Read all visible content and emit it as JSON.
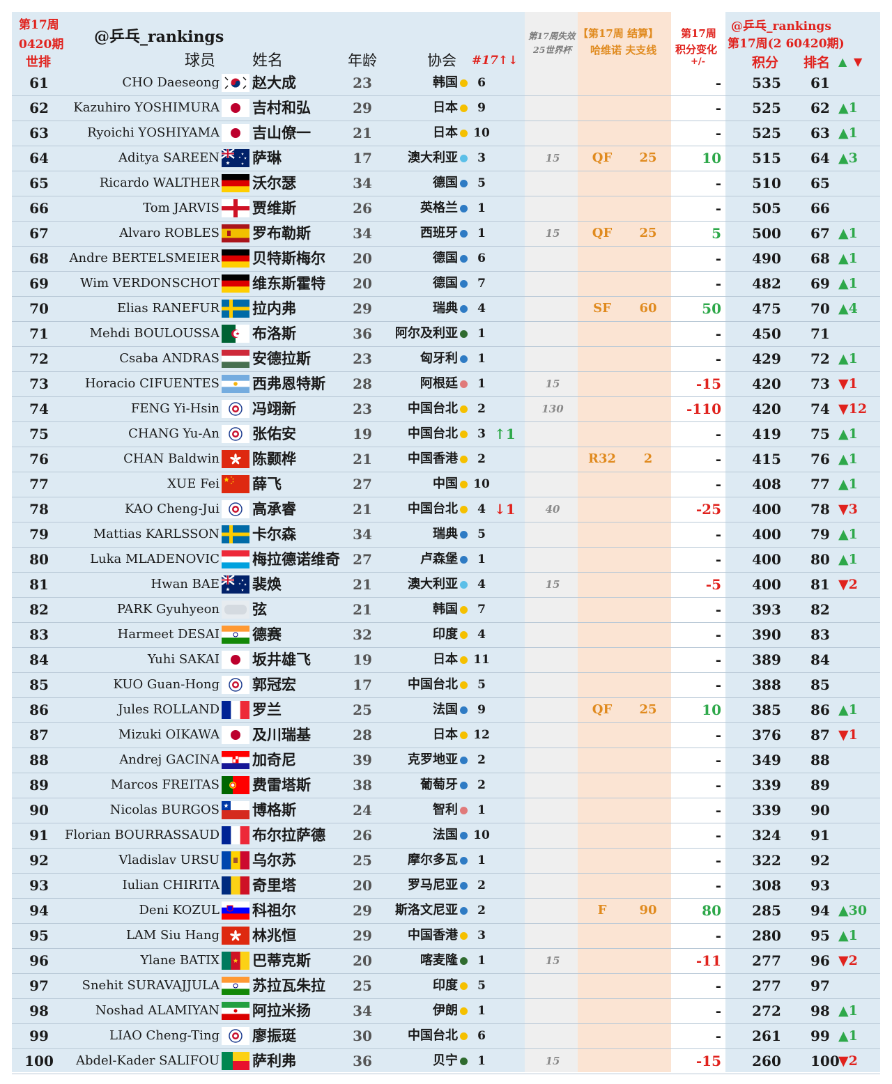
{
  "header": {
    "week_title": "第17周",
    "period": "0420期",
    "world_rank": "世排",
    "handle": "@乒乓_rankings",
    "col_player": "球员",
    "col_name": "姓名",
    "col_age": "年龄",
    "col_assoc": "协会",
    "col_count": "#17↑↓",
    "expire_line1": "第17周失效",
    "expire_line2": "25世界杯",
    "settle_line1": "【第17周 结算】",
    "settle_line2": "哈维诺 夫支线",
    "change_line1": "第17周",
    "change_line2": "积分变化",
    "change_line3": "+/-",
    "right_handle": "@乒乓_rankings",
    "right_period": "第17周(2 60420期)",
    "col_points": "积分",
    "col_rank": "排名",
    "up_arrow": "▲",
    "down_arrow": "▼"
  },
  "colors": {
    "background": "#ddeaf3",
    "expire_column": "#efefef",
    "settle_column": "#fbe4d3",
    "change_column": "#ffffff",
    "red": "#e0221d",
    "green": "#2ea84a",
    "orange": "#e08a1e",
    "dot_yellow": "#f5c000",
    "dot_blue": "#2e7bc4",
    "dot_lightblue": "#5bbfe8",
    "dot_green": "#2f6b2f",
    "dot_pink": "#e07a7a"
  },
  "rows": [
    {
      "wr": "61",
      "en": "CHO Daeseong",
      "flag": "kor",
      "zh": "赵大成",
      "age": "23",
      "assoc": "韩国",
      "dot": "yellow",
      "cnt": "6",
      "mv": "",
      "exp": "",
      "res": "",
      "rpt": "",
      "chg": "-",
      "pts": "535",
      "rk": "61",
      "rm": ""
    },
    {
      "wr": "62",
      "en": "Kazuhiro YOSHIMURA",
      "flag": "jpn",
      "zh": "吉村和弘",
      "age": "29",
      "assoc": "日本",
      "dot": "yellow",
      "cnt": "9",
      "mv": "",
      "exp": "",
      "res": "",
      "rpt": "",
      "chg": "-",
      "pts": "525",
      "rk": "62",
      "rm": "▲1"
    },
    {
      "wr": "63",
      "en": "Ryoichi YOSHIYAMA",
      "flag": "jpn",
      "zh": "吉山僚一",
      "age": "21",
      "assoc": "日本",
      "dot": "yellow",
      "cnt": "10",
      "mv": "",
      "exp": "",
      "res": "",
      "rpt": "",
      "chg": "-",
      "pts": "525",
      "rk": "63",
      "rm": "▲1"
    },
    {
      "wr": "64",
      "en": "Aditya SAREEN",
      "flag": "aus",
      "zh": "萨琳",
      "age": "17",
      "assoc": "澳大利亚",
      "dot": "lightblue",
      "cnt": "3",
      "mv": "",
      "exp": "15",
      "res": "QF",
      "rpt": "25",
      "chg": "10",
      "pts": "515",
      "rk": "64",
      "rm": "▲3"
    },
    {
      "wr": "65",
      "en": "Ricardo WALTHER",
      "flag": "ger",
      "zh": "沃尔瑟",
      "age": "34",
      "assoc": "德国",
      "dot": "blue",
      "cnt": "5",
      "mv": "",
      "exp": "",
      "res": "",
      "rpt": "",
      "chg": "-",
      "pts": "510",
      "rk": "65",
      "rm": ""
    },
    {
      "wr": "66",
      "en": "Tom JARVIS",
      "flag": "eng",
      "zh": "贾维斯",
      "age": "26",
      "assoc": "英格兰",
      "dot": "blue",
      "cnt": "1",
      "mv": "",
      "exp": "",
      "res": "",
      "rpt": "",
      "chg": "-",
      "pts": "505",
      "rk": "66",
      "rm": ""
    },
    {
      "wr": "67",
      "en": "Alvaro ROBLES",
      "flag": "esp",
      "zh": "罗布勒斯",
      "age": "34",
      "assoc": "西班牙",
      "dot": "blue",
      "cnt": "1",
      "mv": "",
      "exp": "15",
      "res": "QF",
      "rpt": "25",
      "chg": "5",
      "pts": "500",
      "rk": "67",
      "rm": "▲1"
    },
    {
      "wr": "68",
      "en": "Andre BERTELSMEIER",
      "flag": "ger",
      "zh": "贝特斯梅尔",
      "age": "20",
      "assoc": "德国",
      "dot": "blue",
      "cnt": "6",
      "mv": "",
      "exp": "",
      "res": "",
      "rpt": "",
      "chg": "-",
      "pts": "490",
      "rk": "68",
      "rm": "▲1"
    },
    {
      "wr": "69",
      "en": "Wim VERDONSCHOT",
      "flag": "ger",
      "zh": "维东斯霍特",
      "age": "20",
      "assoc": "德国",
      "dot": "blue",
      "cnt": "7",
      "mv": "",
      "exp": "",
      "res": "",
      "rpt": "",
      "chg": "-",
      "pts": "482",
      "rk": "69",
      "rm": "▲1"
    },
    {
      "wr": "70",
      "en": "Elias RANEFUR",
      "flag": "swe",
      "zh": "拉内弗",
      "age": "29",
      "assoc": "瑞典",
      "dot": "blue",
      "cnt": "4",
      "mv": "",
      "exp": "",
      "res": "SF",
      "rpt": "60",
      "chg": "50",
      "pts": "475",
      "rk": "70",
      "rm": "▲4"
    },
    {
      "wr": "71",
      "en": "Mehdi BOULOUSSA",
      "flag": "alg",
      "zh": "布洛斯",
      "age": "36",
      "assoc": "阿尔及利亚",
      "dot": "green",
      "cnt": "1",
      "mv": "",
      "exp": "",
      "res": "",
      "rpt": "",
      "chg": "-",
      "pts": "450",
      "rk": "71",
      "rm": ""
    },
    {
      "wr": "72",
      "en": "Csaba ANDRAS",
      "flag": "hun",
      "zh": "安德拉斯",
      "age": "23",
      "assoc": "匈牙利",
      "dot": "blue",
      "cnt": "1",
      "mv": "",
      "exp": "",
      "res": "",
      "rpt": "",
      "chg": "-",
      "pts": "429",
      "rk": "72",
      "rm": "▲1"
    },
    {
      "wr": "73",
      "en": "Horacio CIFUENTES",
      "flag": "arg",
      "zh": "西弗恩特斯",
      "age": "28",
      "assoc": "阿根廷",
      "dot": "pink",
      "cnt": "1",
      "mv": "",
      "exp": "15",
      "res": "",
      "rpt": "",
      "chg": "-15",
      "pts": "420",
      "rk": "73",
      "rm": "▼1"
    },
    {
      "wr": "74",
      "en": "FENG Yi-Hsin",
      "flag": "tpe",
      "zh": "冯翊新",
      "age": "23",
      "assoc": "中国台北",
      "dot": "yellow",
      "cnt": "2",
      "mv": "",
      "exp": "130",
      "res": "",
      "rpt": "",
      "chg": "-110",
      "pts": "420",
      "rk": "74",
      "rm": "▼12"
    },
    {
      "wr": "75",
      "en": "CHANG Yu-An",
      "flag": "tpe",
      "zh": "张佑安",
      "age": "19",
      "assoc": "中国台北",
      "dot": "yellow",
      "cnt": "3",
      "mv": "↑1",
      "exp": "",
      "res": "",
      "rpt": "",
      "chg": "-",
      "pts": "419",
      "rk": "75",
      "rm": "▲1"
    },
    {
      "wr": "76",
      "en": "CHAN Baldwin",
      "flag": "hkg",
      "zh": "陈颢桦",
      "age": "21",
      "assoc": "中国香港",
      "dot": "yellow",
      "cnt": "2",
      "mv": "",
      "exp": "",
      "res": "R32",
      "rpt": "2",
      "chg": "-",
      "pts": "415",
      "rk": "76",
      "rm": "▲1"
    },
    {
      "wr": "77",
      "en": "XUE Fei",
      "flag": "chn",
      "zh": "薛飞",
      "age": "27",
      "assoc": "中国",
      "dot": "yellow",
      "cnt": "10",
      "mv": "",
      "exp": "",
      "res": "",
      "rpt": "",
      "chg": "-",
      "pts": "408",
      "rk": "77",
      "rm": "▲1"
    },
    {
      "wr": "78",
      "en": "KAO Cheng-Jui",
      "flag": "tpe",
      "zh": "高承睿",
      "age": "21",
      "assoc": "中国台北",
      "dot": "yellow",
      "cnt": "4",
      "mv": "↓1",
      "exp": "40",
      "res": "",
      "rpt": "",
      "chg": "-25",
      "pts": "400",
      "rk": "78",
      "rm": "▼3"
    },
    {
      "wr": "79",
      "en": "Mattias KARLSSON",
      "flag": "swe",
      "zh": "卡尔森",
      "age": "34",
      "assoc": "瑞典",
      "dot": "blue",
      "cnt": "5",
      "mv": "",
      "exp": "",
      "res": "",
      "rpt": "",
      "chg": "-",
      "pts": "400",
      "rk": "79",
      "rm": "▲1"
    },
    {
      "wr": "80",
      "en": "Luka MLADENOVIC",
      "flag": "lux",
      "zh": "梅拉德诺维奇",
      "age": "27",
      "assoc": "卢森堡",
      "dot": "blue",
      "cnt": "1",
      "mv": "",
      "exp": "",
      "res": "",
      "rpt": "",
      "chg": "-",
      "pts": "400",
      "rk": "80",
      "rm": "▲1"
    },
    {
      "wr": "81",
      "en": "Hwan BAE",
      "flag": "aus",
      "zh": "裴焕",
      "age": "21",
      "assoc": "澳大利亚",
      "dot": "lightblue",
      "cnt": "4",
      "mv": "",
      "exp": "15",
      "res": "",
      "rpt": "",
      "chg": "-5",
      "pts": "400",
      "rk": "81",
      "rm": "▼2"
    },
    {
      "wr": "82",
      "en": "PARK Gyuhyeon",
      "flag": "blur",
      "zh": "弦",
      "age": "21",
      "assoc": "韩国",
      "dot": "yellow",
      "cnt": "7",
      "mv": "",
      "exp": "",
      "res": "",
      "rpt": "",
      "chg": "-",
      "pts": "393",
      "rk": "82",
      "rm": ""
    },
    {
      "wr": "83",
      "en": "Harmeet DESAI",
      "flag": "ind",
      "zh": "德赛",
      "age": "32",
      "assoc": "印度",
      "dot": "yellow",
      "cnt": "4",
      "mv": "",
      "exp": "",
      "res": "",
      "rpt": "",
      "chg": "-",
      "pts": "390",
      "rk": "83",
      "rm": ""
    },
    {
      "wr": "84",
      "en": "Yuhi SAKAI",
      "flag": "jpn",
      "zh": "坂井雄飞",
      "age": "19",
      "assoc": "日本",
      "dot": "yellow",
      "cnt": "11",
      "mv": "",
      "exp": "",
      "res": "",
      "rpt": "",
      "chg": "-",
      "pts": "389",
      "rk": "84",
      "rm": ""
    },
    {
      "wr": "85",
      "en": "KUO Guan-Hong",
      "flag": "tpe",
      "zh": "郭冠宏",
      "age": "17",
      "assoc": "中国台北",
      "dot": "yellow",
      "cnt": "5",
      "mv": "",
      "exp": "",
      "res": "",
      "rpt": "",
      "chg": "-",
      "pts": "388",
      "rk": "85",
      "rm": ""
    },
    {
      "wr": "86",
      "en": "Jules ROLLAND",
      "flag": "fra",
      "zh": "罗兰",
      "age": "25",
      "assoc": "法国",
      "dot": "blue",
      "cnt": "9",
      "mv": "",
      "exp": "",
      "res": "QF",
      "rpt": "25",
      "chg": "10",
      "pts": "385",
      "rk": "86",
      "rm": "▲1"
    },
    {
      "wr": "87",
      "en": "Mizuki OIKAWA",
      "flag": "jpn",
      "zh": "及川瑞基",
      "age": "28",
      "assoc": "日本",
      "dot": "yellow",
      "cnt": "12",
      "mv": "",
      "exp": "",
      "res": "",
      "rpt": "",
      "chg": "-",
      "pts": "376",
      "rk": "87",
      "rm": "▼1"
    },
    {
      "wr": "88",
      "en": "Andrej GACINA",
      "flag": "cro",
      "zh": "加奇尼",
      "age": "39",
      "assoc": "克罗地亚",
      "dot": "blue",
      "cnt": "2",
      "mv": "",
      "exp": "",
      "res": "",
      "rpt": "",
      "chg": "-",
      "pts": "349",
      "rk": "88",
      "rm": ""
    },
    {
      "wr": "89",
      "en": "Marcos FREITAS",
      "flag": "por",
      "zh": "费雷塔斯",
      "age": "38",
      "assoc": "葡萄牙",
      "dot": "blue",
      "cnt": "2",
      "mv": "",
      "exp": "",
      "res": "",
      "rpt": "",
      "chg": "-",
      "pts": "339",
      "rk": "89",
      "rm": ""
    },
    {
      "wr": "90",
      "en": "Nicolas BURGOS",
      "flag": "chi",
      "zh": "博格斯",
      "age": "24",
      "assoc": "智利",
      "dot": "pink",
      "cnt": "1",
      "mv": "",
      "exp": "",
      "res": "",
      "rpt": "",
      "chg": "-",
      "pts": "339",
      "rk": "90",
      "rm": ""
    },
    {
      "wr": "91",
      "en": "Florian BOURRASSAUD",
      "flag": "fra",
      "zh": "布尔拉萨德",
      "age": "26",
      "assoc": "法国",
      "dot": "blue",
      "cnt": "10",
      "mv": "",
      "exp": "",
      "res": "",
      "rpt": "",
      "chg": "-",
      "pts": "324",
      "rk": "91",
      "rm": ""
    },
    {
      "wr": "92",
      "en": "Vladislav URSU",
      "flag": "mda",
      "zh": "乌尔苏",
      "age": "25",
      "assoc": "摩尔多瓦",
      "dot": "blue",
      "cnt": "1",
      "mv": "",
      "exp": "",
      "res": "",
      "rpt": "",
      "chg": "-",
      "pts": "322",
      "rk": "92",
      "rm": ""
    },
    {
      "wr": "93",
      "en": "Iulian CHIRITA",
      "flag": "rou",
      "zh": "奇里塔",
      "age": "20",
      "assoc": "罗马尼亚",
      "dot": "blue",
      "cnt": "2",
      "mv": "",
      "exp": "",
      "res": "",
      "rpt": "",
      "chg": "-",
      "pts": "308",
      "rk": "93",
      "rm": ""
    },
    {
      "wr": "94",
      "en": "Deni KOZUL",
      "flag": "slo",
      "zh": "科祖尔",
      "age": "29",
      "assoc": "斯洛文尼亚",
      "dot": "blue",
      "cnt": "2",
      "mv": "",
      "exp": "",
      "res": "F",
      "rpt": "90",
      "chg": "80",
      "pts": "285",
      "rk": "94",
      "rm": "▲30"
    },
    {
      "wr": "95",
      "en": "LAM Siu Hang",
      "flag": "hkg",
      "zh": "林兆恒",
      "age": "29",
      "assoc": "中国香港",
      "dot": "yellow",
      "cnt": "3",
      "mv": "",
      "exp": "",
      "res": "",
      "rpt": "",
      "chg": "-",
      "pts": "280",
      "rk": "95",
      "rm": "▲1"
    },
    {
      "wr": "96",
      "en": "Ylane BATIX",
      "flag": "cmr",
      "zh": "巴蒂克斯",
      "age": "20",
      "assoc": "喀麦隆",
      "dot": "green",
      "cnt": "1",
      "mv": "",
      "exp": "15",
      "res": "",
      "rpt": "",
      "chg": "-11",
      "pts": "277",
      "rk": "96",
      "rm": "▼2"
    },
    {
      "wr": "97",
      "en": "Snehit SURAVAJJULA",
      "flag": "ind",
      "zh": "苏拉瓦朱拉",
      "age": "25",
      "assoc": "印度",
      "dot": "yellow",
      "cnt": "5",
      "mv": "",
      "exp": "",
      "res": "",
      "rpt": "",
      "chg": "-",
      "pts": "277",
      "rk": "97",
      "rm": ""
    },
    {
      "wr": "98",
      "en": "Noshad ALAMIYAN",
      "flag": "iri",
      "zh": "阿拉米扬",
      "age": "34",
      "assoc": "伊朗",
      "dot": "yellow",
      "cnt": "1",
      "mv": "",
      "exp": "",
      "res": "",
      "rpt": "",
      "chg": "-",
      "pts": "272",
      "rk": "98",
      "rm": "▲1"
    },
    {
      "wr": "99",
      "en": "LIAO Cheng-Ting",
      "flag": "tpe",
      "zh": "廖振珽",
      "age": "30",
      "assoc": "中国台北",
      "dot": "yellow",
      "cnt": "6",
      "mv": "",
      "exp": "",
      "res": "",
      "rpt": "",
      "chg": "-",
      "pts": "261",
      "rk": "99",
      "rm": "▲1"
    },
    {
      "wr": "100",
      "en": "Abdel-Kader SALIFOU",
      "flag": "ben",
      "zh": "萨利弗",
      "age": "36",
      "assoc": "贝宁",
      "dot": "green",
      "cnt": "1",
      "mv": "",
      "exp": "15",
      "res": "",
      "rpt": "",
      "chg": "-15",
      "pts": "260",
      "rk": "100",
      "rm": "▼2"
    }
  ]
}
